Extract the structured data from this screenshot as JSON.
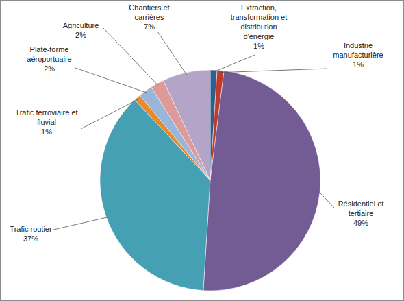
{
  "chart_data": {
    "type": "pie",
    "categories": [
      "Extraction, transformation et distribution d'énergie",
      "Industrie manufacturière",
      "Résidentiel et tertiaire",
      "Trafic routier",
      "Trafic ferroviaire et fluvial",
      "Plate-forme aéroportuaire",
      "Agriculture",
      "Chantiers et carrières"
    ],
    "values": [
      1,
      1,
      49,
      37,
      1,
      2,
      2,
      7
    ],
    "value_labels": [
      "1%",
      "1%",
      "49%",
      "37%",
      "1%",
      "2%",
      "2%",
      "7%"
    ],
    "colors": [
      "#2f5f8f",
      "#c0392b",
      "#735b94",
      "#46a0b4",
      "#e88a2e",
      "#98b6da",
      "#dc9a98",
      "#b4a4c8"
    ],
    "data_labels": true
  }
}
